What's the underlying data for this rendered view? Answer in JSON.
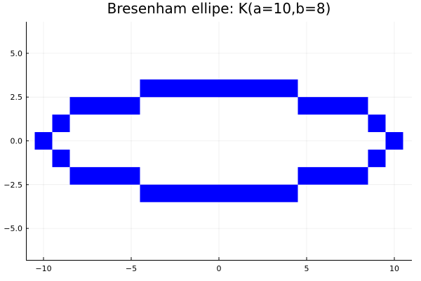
{
  "chart_data": {
    "type": "scatter",
    "title": "Bresenham ellipe: K(a=10,b=8)",
    "xlabel": "",
    "ylabel": "",
    "xlim": [
      -11.0,
      11.0
    ],
    "ylim": [
      -6.8,
      6.8
    ],
    "x_ticks": [
      -10,
      -5,
      0,
      5,
      10
    ],
    "x_tick_labels": [
      "−10",
      "−5",
      "0",
      "5",
      "10"
    ],
    "y_ticks": [
      -5,
      -2.5,
      0,
      2.5,
      5
    ],
    "y_tick_labels": [
      "−5.0",
      "−2.5",
      "0.0",
      "2.5",
      "5.0"
    ],
    "grid": true,
    "legend": "none",
    "marker": "square",
    "marker_size_units": 1,
    "color": "#0000ff",
    "series": [
      {
        "x": [
          0,
          1,
          2,
          3,
          4,
          5,
          6,
          7,
          8,
          9,
          10,
          0,
          1,
          2,
          3,
          4,
          -1,
          -2,
          -3,
          -4,
          -5,
          -6,
          -7,
          -8,
          -9,
          -10,
          -1,
          -2,
          -3,
          -4,
          5,
          6,
          7,
          8,
          9,
          -5,
          -6,
          -7,
          -8,
          -9,
          0,
          1,
          2,
          3,
          4,
          -1,
          -2,
          -3,
          -4
        ],
        "y": [
          3,
          3,
          3,
          3,
          3,
          2,
          2,
          2,
          2,
          1,
          0,
          -3,
          -3,
          -3,
          -3,
          -3,
          3,
          3,
          3,
          3,
          2,
          2,
          2,
          2,
          1,
          0,
          -3,
          -3,
          -3,
          -3,
          -2,
          -2,
          -2,
          -2,
          -1,
          -2,
          -2,
          -2,
          -2,
          -1,
          3,
          3,
          3,
          3,
          3,
          3,
          3,
          3,
          3
        ]
      }
    ]
  }
}
